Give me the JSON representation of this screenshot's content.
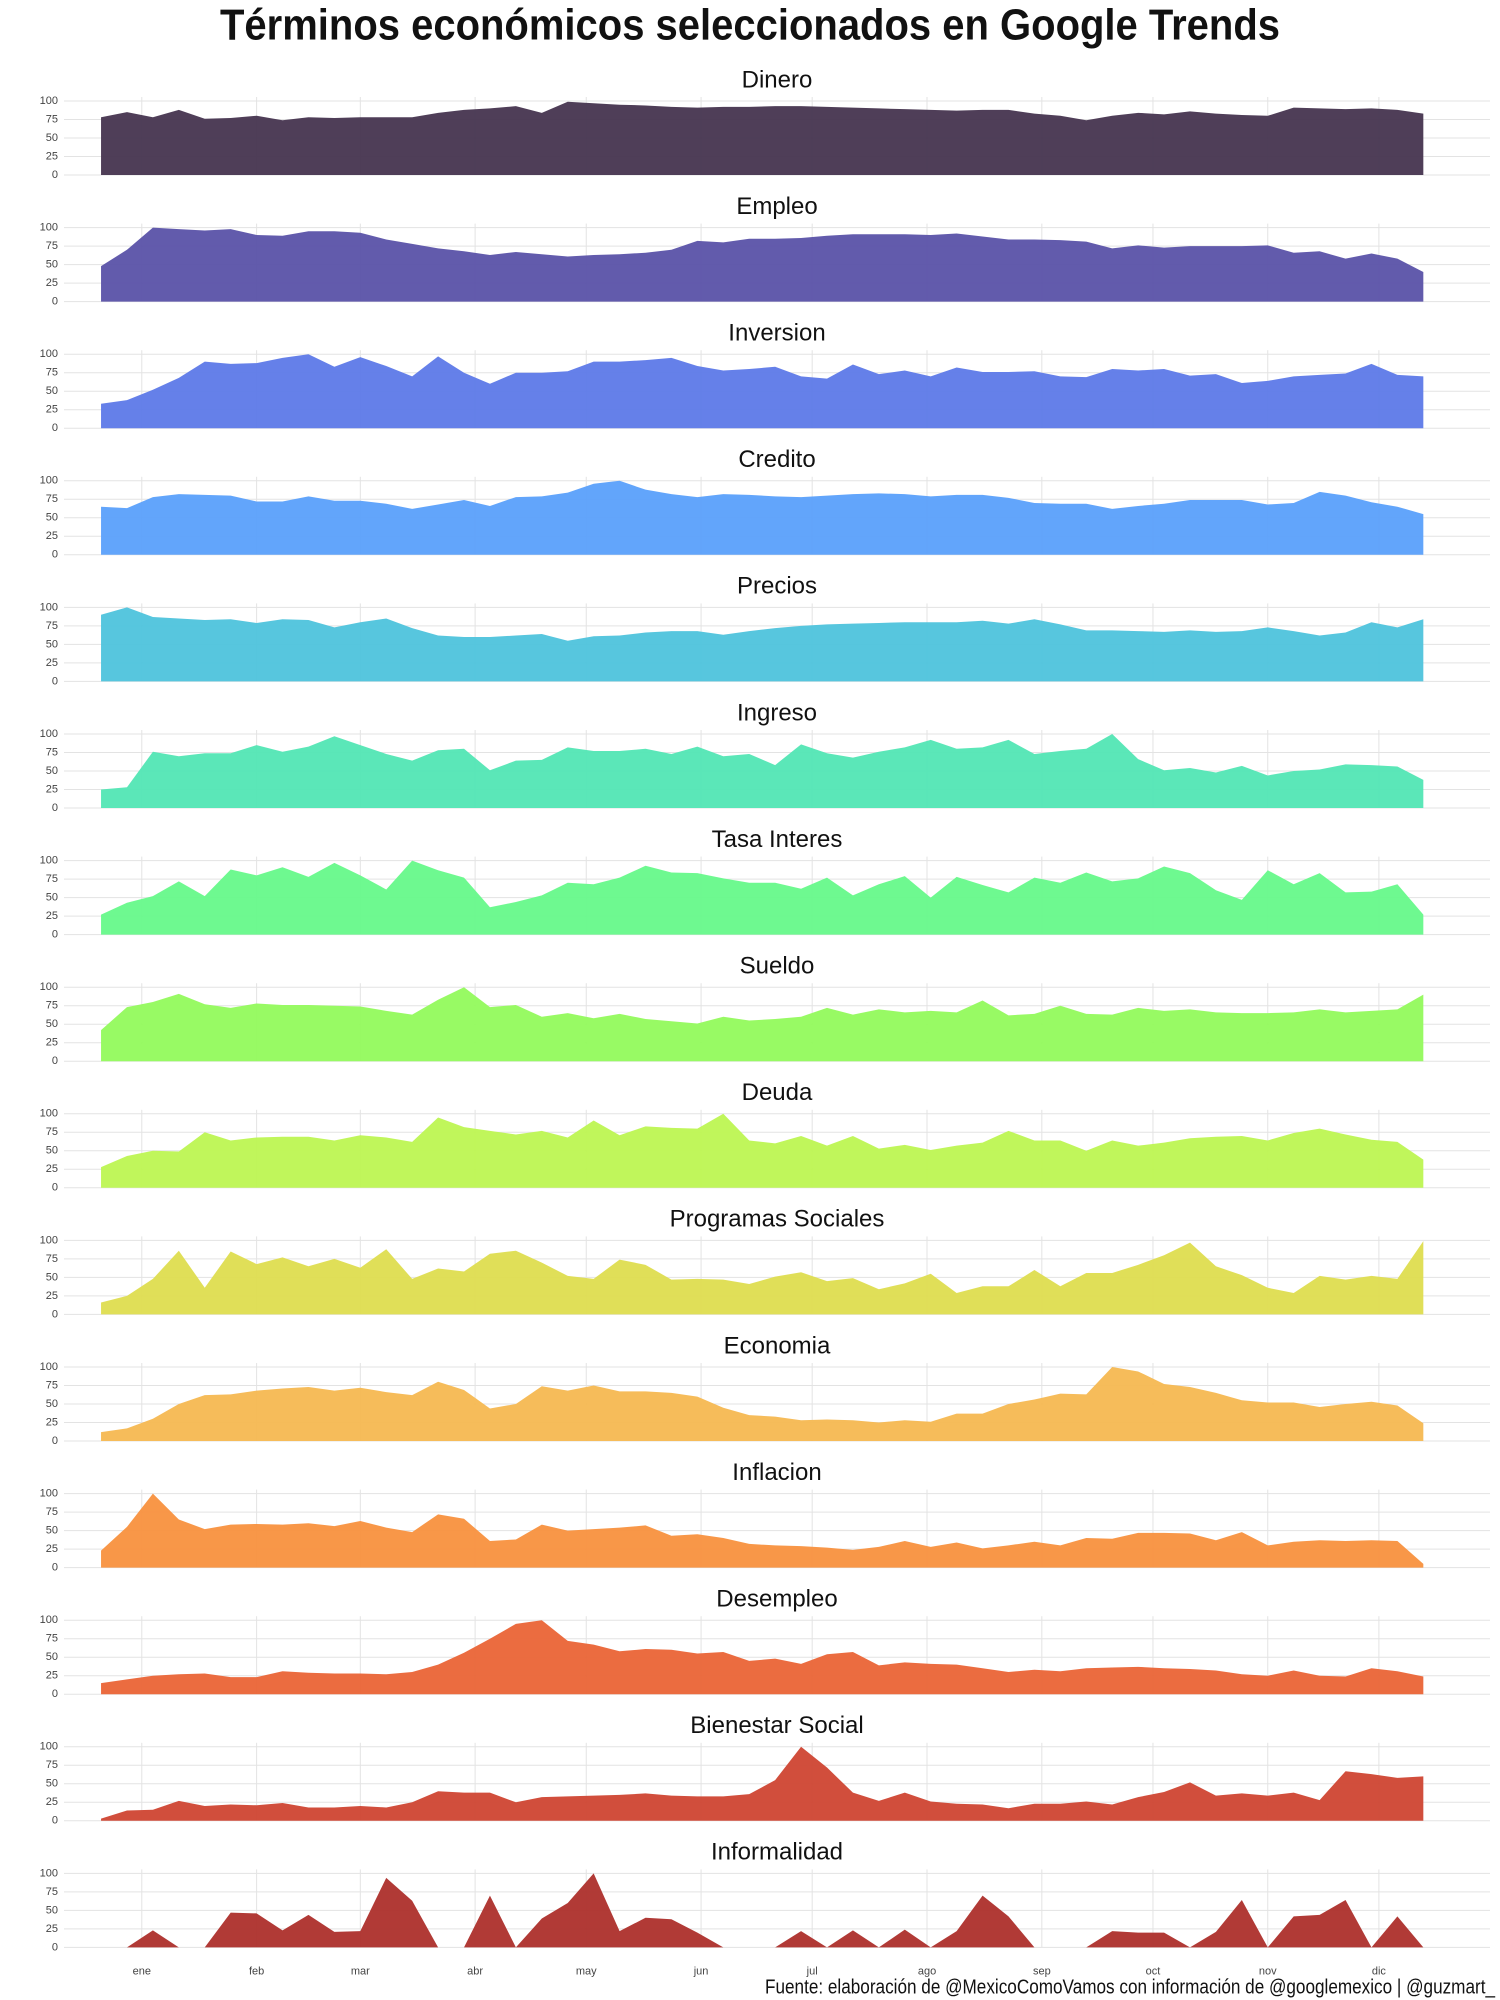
{
  "title": "Términos económicos seleccionados en Google Trends",
  "caption": "Fuente: elaboración de @MexicoComoVamos con información de @googlemexico | @guzmart_",
  "chart_data": {
    "type": "area",
    "facets": true,
    "x": [
      -10,
      -3,
      4,
      11,
      18,
      25,
      32,
      39,
      46,
      53,
      60,
      67,
      74,
      81,
      88,
      95,
      102,
      109,
      116,
      123,
      130,
      137,
      144,
      151,
      158,
      165,
      172,
      179,
      186,
      193,
      200,
      207,
      214,
      221,
      228,
      235,
      242,
      249,
      256,
      263,
      270,
      277,
      284,
      291,
      298,
      305,
      312,
      319,
      326,
      333,
      340,
      347
    ],
    "xlim": [
      -20,
      365
    ],
    "xticks": [
      {
        "value": 1,
        "label": "ene"
      },
      {
        "value": 32,
        "label": "feb"
      },
      {
        "value": 60,
        "label": "mar"
      },
      {
        "value": 91,
        "label": "abr"
      },
      {
        "value": 121,
        "label": "may"
      },
      {
        "value": 152,
        "label": "jun"
      },
      {
        "value": 182,
        "label": "jul"
      },
      {
        "value": 213,
        "label": "ago"
      },
      {
        "value": 244,
        "label": "sep"
      },
      {
        "value": 274,
        "label": "oct"
      },
      {
        "value": 305,
        "label": "nov"
      },
      {
        "value": 335,
        "label": "dic"
      }
    ],
    "ylim": [
      0,
      100
    ],
    "yticks": [
      0,
      25,
      50,
      75,
      100
    ],
    "grid": true,
    "series": [
      {
        "name": "Dinero",
        "color": "#46344f",
        "values": [
          78,
          85,
          78,
          88,
          76,
          77,
          80,
          74,
          78,
          77,
          78,
          78,
          78,
          84,
          88,
          90,
          93,
          84,
          99,
          97,
          95,
          94,
          92,
          91,
          92,
          92,
          93,
          93,
          92,
          91,
          90,
          89,
          88,
          87,
          88,
          88,
          83,
          80,
          74,
          80,
          84,
          82,
          86,
          83,
          81,
          80,
          91,
          90,
          89,
          90,
          88,
          83
        ]
      },
      {
        "name": "Empleo",
        "color": "#5a52a8",
        "values": [
          48,
          70,
          100,
          98,
          96,
          98,
          90,
          89,
          95,
          95,
          93,
          84,
          78,
          72,
          68,
          63,
          67,
          64,
          61,
          63,
          64,
          66,
          70,
          82,
          80,
          85,
          85,
          86,
          89,
          91,
          91,
          91,
          90,
          92,
          88,
          84,
          84,
          83,
          81,
          72,
          76,
          73,
          75,
          75,
          75,
          76,
          66,
          68,
          58,
          65,
          58,
          40
        ]
      },
      {
        "name": "Inversion",
        "color": "#5d79e8",
        "values": [
          33,
          38,
          52,
          68,
          90,
          87,
          88,
          95,
          100,
          83,
          96,
          84,
          70,
          97,
          75,
          60,
          75,
          75,
          77,
          90,
          90,
          92,
          95,
          84,
          78,
          80,
          83,
          70,
          67,
          86,
          73,
          78,
          70,
          82,
          76,
          76,
          77,
          70,
          69,
          80,
          78,
          80,
          71,
          73,
          61,
          64,
          70,
          72,
          74,
          87,
          72,
          70
        ]
      },
      {
        "name": "Credito",
        "color": "#5aa0fb",
        "values": [
          65,
          63,
          78,
          82,
          81,
          80,
          72,
          72,
          79,
          73,
          73,
          69,
          62,
          68,
          74,
          66,
          78,
          79,
          84,
          96,
          100,
          88,
          82,
          78,
          82,
          81,
          79,
          78,
          80,
          82,
          83,
          82,
          79,
          81,
          81,
          77,
          70,
          69,
          69,
          62,
          66,
          69,
          74,
          74,
          74,
          68,
          70,
          85,
          80,
          71,
          65,
          55
        ]
      },
      {
        "name": "Precios",
        "color": "#4ec3dc",
        "values": [
          90,
          100,
          87,
          85,
          83,
          84,
          79,
          84,
          83,
          73,
          80,
          85,
          72,
          62,
          60,
          60,
          62,
          64,
          55,
          61,
          62,
          66,
          68,
          68,
          63,
          68,
          72,
          75,
          77,
          78,
          79,
          80,
          80,
          80,
          82,
          78,
          84,
          77,
          69,
          69,
          68,
          67,
          69,
          67,
          68,
          73,
          68,
          62,
          66,
          80,
          73,
          84
        ]
      },
      {
        "name": "Ingreso",
        "color": "#52e6b4",
        "values": [
          25,
          28,
          76,
          70,
          74,
          74,
          85,
          76,
          83,
          97,
          85,
          73,
          64,
          78,
          80,
          51,
          64,
          65,
          82,
          77,
          77,
          80,
          73,
          83,
          70,
          73,
          58,
          86,
          74,
          68,
          76,
          82,
          92,
          80,
          82,
          92,
          73,
          77,
          80,
          100,
          66,
          51,
          54,
          48,
          57,
          44,
          50,
          52,
          59,
          58,
          56,
          38
        ]
      },
      {
        "name": "Tasa Interes",
        "color": "#66f98a",
        "values": [
          27,
          43,
          52,
          72,
          52,
          88,
          80,
          91,
          78,
          97,
          80,
          61,
          100,
          87,
          77,
          37,
          44,
          53,
          70,
          68,
          77,
          93,
          84,
          83,
          76,
          70,
          70,
          62,
          77,
          53,
          68,
          79,
          50,
          78,
          67,
          57,
          77,
          70,
          84,
          72,
          76,
          92,
          83,
          60,
          47,
          87,
          68,
          83,
          57,
          58,
          68,
          27
        ]
      },
      {
        "name": "Sueldo",
        "color": "#92fa5c",
        "values": [
          42,
          73,
          80,
          91,
          77,
          72,
          78,
          76,
          76,
          75,
          74,
          68,
          63,
          83,
          100,
          73,
          76,
          60,
          65,
          58,
          64,
          57,
          54,
          51,
          60,
          55,
          57,
          60,
          72,
          63,
          70,
          66,
          68,
          66,
          82,
          62,
          64,
          75,
          64,
          63,
          72,
          68,
          70,
          66,
          65,
          65,
          66,
          70,
          66,
          68,
          70,
          90
        ]
      },
      {
        "name": "Deuda",
        "color": "#bdf652",
        "values": [
          28,
          43,
          50,
          49,
          75,
          64,
          68,
          69,
          69,
          64,
          71,
          68,
          62,
          95,
          82,
          77,
          72,
          77,
          68,
          91,
          71,
          83,
          81,
          80,
          100,
          64,
          60,
          70,
          57,
          70,
          53,
          58,
          51,
          57,
          61,
          77,
          64,
          64,
          50,
          64,
          57,
          61,
          67,
          69,
          70,
          64,
          74,
          80,
          72,
          65,
          62,
          38
        ]
      },
      {
        "name": "Programas Sociales",
        "color": "#dedd4f",
        "values": [
          16,
          25,
          48,
          86,
          36,
          85,
          68,
          77,
          65,
          75,
          63,
          88,
          48,
          62,
          58,
          82,
          86,
          70,
          52,
          48,
          74,
          67,
          47,
          48,
          47,
          41,
          51,
          57,
          45,
          49,
          34,
          42,
          55,
          29,
          38,
          38,
          60,
          38,
          56,
          56,
          67,
          80,
          97,
          65,
          53,
          36,
          29,
          52,
          47,
          52,
          48,
          99
        ]
      },
      {
        "name": "Economia",
        "color": "#f5b851",
        "values": [
          12,
          17,
          30,
          50,
          62,
          63,
          68,
          71,
          73,
          68,
          72,
          66,
          62,
          80,
          69,
          44,
          50,
          74,
          68,
          75,
          67,
          67,
          65,
          60,
          45,
          35,
          33,
          28,
          29,
          28,
          25,
          28,
          26,
          37,
          37,
          50,
          56,
          64,
          63,
          100,
          94,
          77,
          73,
          65,
          55,
          52,
          52,
          46,
          50,
          53,
          48,
          24
        ]
      },
      {
        "name": "Inflacion",
        "color": "#f8913e",
        "values": [
          23,
          55,
          100,
          65,
          52,
          58,
          59,
          58,
          60,
          56,
          63,
          54,
          48,
          72,
          66,
          36,
          38,
          58,
          50,
          52,
          54,
          57,
          43,
          45,
          40,
          32,
          30,
          29,
          27,
          24,
          28,
          36,
          28,
          34,
          26,
          30,
          35,
          30,
          40,
          39,
          47,
          47,
          46,
          37,
          48,
          30,
          35,
          37,
          36,
          37,
          36,
          5
        ]
      },
      {
        "name": "Desempleo",
        "color": "#ea6436",
        "values": [
          15,
          20,
          25,
          27,
          28,
          23,
          23,
          31,
          29,
          28,
          28,
          27,
          30,
          40,
          56,
          75,
          95,
          100,
          72,
          67,
          58,
          61,
          60,
          55,
          57,
          45,
          48,
          41,
          54,
          57,
          39,
          43,
          41,
          40,
          35,
          30,
          33,
          31,
          35,
          36,
          37,
          35,
          34,
          32,
          27,
          25,
          32,
          25,
          24,
          35,
          31,
          24
        ]
      },
      {
        "name": "Bienestar Social",
        "color": "#cf4431",
        "values": [
          3,
          14,
          15,
          27,
          20,
          22,
          21,
          24,
          18,
          18,
          20,
          18,
          25,
          40,
          38,
          38,
          25,
          32,
          33,
          34,
          35,
          37,
          34,
          33,
          33,
          36,
          55,
          100,
          72,
          38,
          27,
          38,
          26,
          23,
          22,
          17,
          23,
          23,
          26,
          22,
          32,
          39,
          52,
          34,
          37,
          34,
          38,
          28,
          67,
          63,
          58,
          60
        ]
      },
      {
        "name": "Informalidad",
        "color": "#ad2f2b",
        "values": [
          0,
          0,
          23,
          0,
          0,
          47,
          46,
          23,
          44,
          21,
          22,
          94,
          63,
          0,
          0,
          70,
          0,
          39,
          60,
          100,
          22,
          40,
          38,
          20,
          0,
          0,
          0,
          22,
          0,
          23,
          0,
          24,
          0,
          22,
          70,
          42,
          0,
          0,
          0,
          22,
          20,
          20,
          0,
          21,
          64,
          0,
          42,
          44,
          64,
          0,
          42,
          0
        ]
      }
    ]
  }
}
